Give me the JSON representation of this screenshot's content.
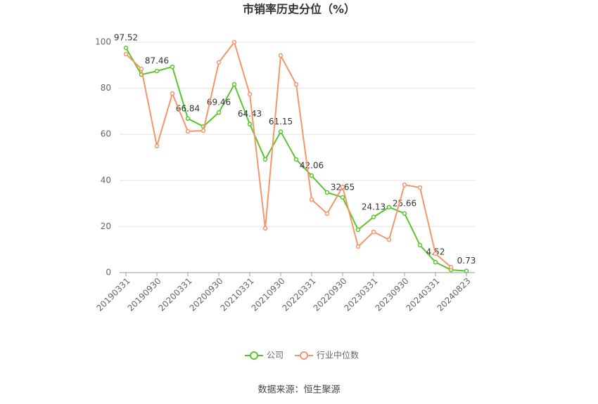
{
  "chart_data": {
    "type": "line",
    "title": "市销率历史分位（%）",
    "source": "数据来源：恒生聚源",
    "categories": [
      "20190331",
      null,
      "20190930",
      null,
      "20200331",
      null,
      "20200930",
      null,
      "20210331",
      null,
      "20210930",
      null,
      "20220331",
      null,
      "20220930",
      null,
      "20230331",
      null,
      "20230930",
      null,
      "20240331",
      null,
      "20240823"
    ],
    "series": [
      {
        "name": "公司",
        "color": "#5ac52b",
        "values": [
          97.52,
          85.9,
          87.46,
          89.3,
          66.84,
          63.4,
          69.46,
          81.7,
          64.43,
          49.1,
          61.15,
          49.1,
          42.06,
          34.8,
          32.65,
          18.6,
          24.13,
          28.4,
          25.66,
          11.9,
          4.52,
          1.2,
          0.73
        ],
        "value_labels": [
          "97.52",
          null,
          "87.46",
          null,
          "66.84",
          null,
          "69.46",
          null,
          "64.43",
          null,
          "61.15",
          null,
          "42.06",
          null,
          "32.65",
          null,
          "24.13",
          null,
          "25.66",
          null,
          "4.52",
          null,
          "0.73"
        ]
      },
      {
        "name": "行业中位数",
        "color": "#f4956b",
        "values": [
          94.8,
          88.4,
          54.9,
          77.7,
          61.3,
          61.6,
          91.2,
          100,
          77.4,
          19.2,
          94.2,
          81.7,
          31.7,
          25.6,
          37.2,
          11.3,
          17.7,
          14.3,
          38.1,
          36.9,
          8.2,
          2.4,
          null
        ]
      }
    ],
    "ylim": [
      0,
      100
    ],
    "yticks": [
      0,
      20,
      40,
      60,
      80,
      100
    ],
    "grid": true,
    "legend": "bottom"
  }
}
